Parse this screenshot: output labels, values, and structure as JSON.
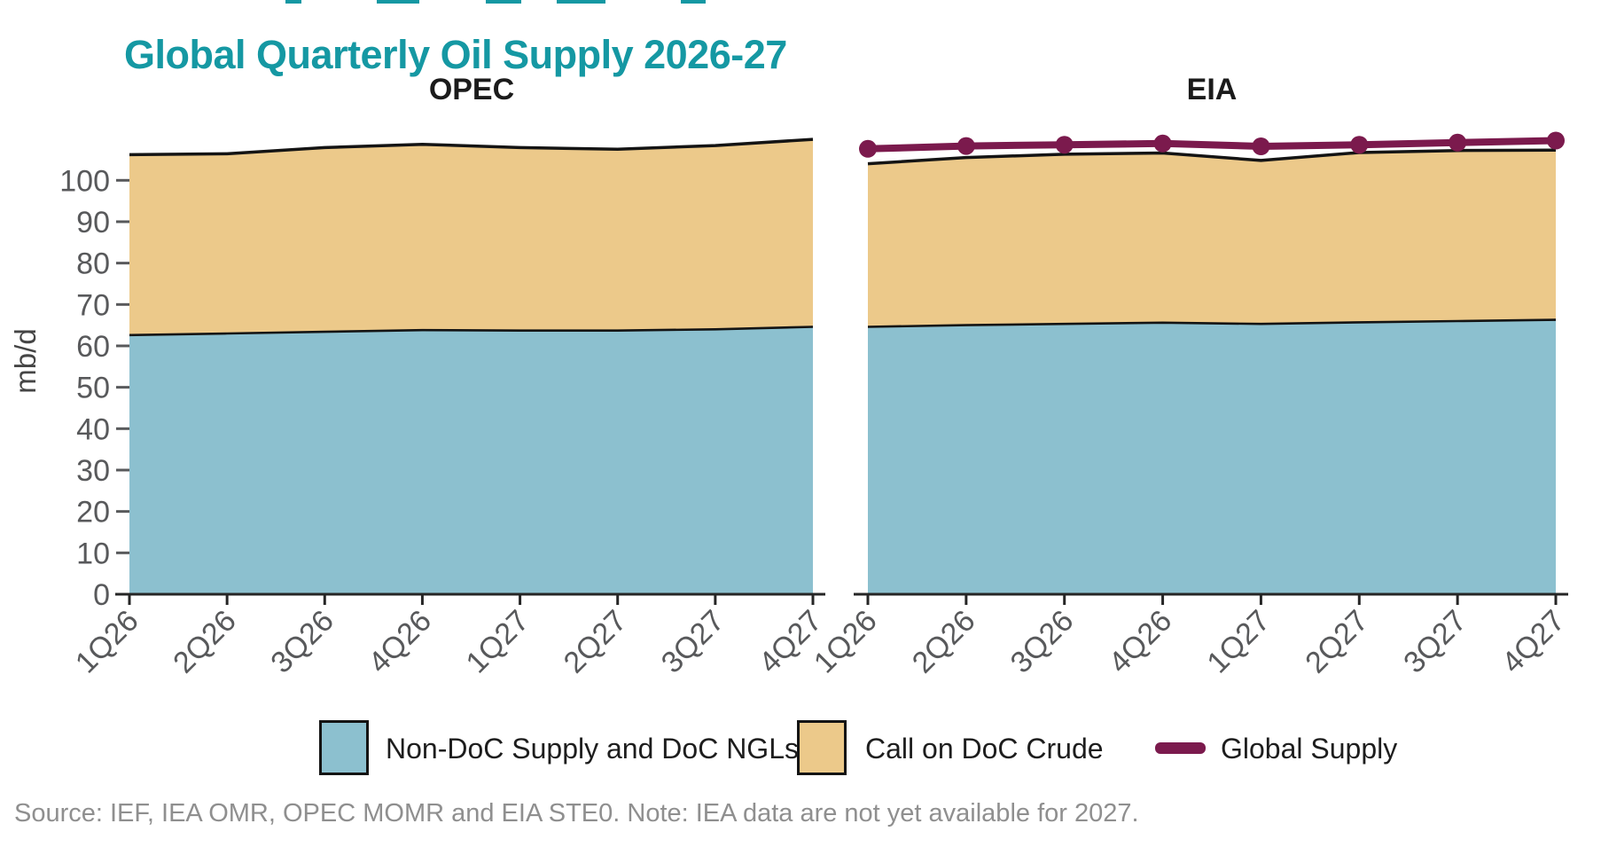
{
  "page": {
    "title": "Global Quarterly Oil Supply 2026-27",
    "source_note": "Source: IEF, IEA OMR, OPEC MOMR and EIA STE0. Note: IEA data are not yet available for 2027."
  },
  "colors": {
    "title_teal": "#1598A3",
    "area_blue": "#8CC0CF",
    "area_tan": "#ECC98A",
    "line_maroon": "#7B1A4D",
    "outline_black": "#141414",
    "axis_black": "#262626",
    "tick_gray": "#58595B",
    "panel_title_black": "#1B1B1B",
    "source_gray": "#8F8F8F"
  },
  "legend": {
    "items": [
      {
        "label": "Non-DoC Supply and DoC NGLs",
        "swatch": "area",
        "color": "#8CC0CF"
      },
      {
        "label": "Call on DoC Crude",
        "swatch": "area",
        "color": "#ECC98A"
      },
      {
        "label": "Global Supply",
        "swatch": "line",
        "color": "#7B1A4D"
      }
    ]
  },
  "chart_data": {
    "type": "area",
    "subtype": "two-panel stacked area, quarterly, shared y axis",
    "categories": [
      "1Q26",
      "2Q26",
      "3Q26",
      "4Q26",
      "1Q27",
      "2Q27",
      "3Q27",
      "4Q27"
    ],
    "y_axis": {
      "label": "mb/d",
      "ticks": [
        0,
        10,
        20,
        30,
        40,
        50,
        60,
        70,
        80,
        90,
        100
      ],
      "range": [
        0,
        112
      ],
      "grid": false
    },
    "legend_position": "bottom",
    "panels": [
      {
        "title": "OPEC",
        "series": [
          {
            "name": "Non-DoC Supply and DoC NGLs",
            "type": "area-stack",
            "color": "#8CC0CF",
            "values": [
              62.6,
              63.0,
              63.4,
              63.8,
              63.7,
              63.7,
              64.0,
              64.6
            ]
          },
          {
            "name": "Call on DoC Crude",
            "type": "area-stack",
            "color": "#ECC98A",
            "values": [
              43.6,
              43.4,
              44.5,
              44.9,
              44.2,
              43.8,
              44.4,
              45.3
            ]
          }
        ],
        "stack_totals": [
          106.2,
          106.4,
          107.9,
          108.7,
          107.9,
          107.5,
          108.4,
          109.9
        ]
      },
      {
        "title": "EIA",
        "series": [
          {
            "name": "Non-DoC Supply and DoC NGLs",
            "type": "area-stack",
            "color": "#8CC0CF",
            "values": [
              64.6,
              65.0,
              65.3,
              65.6,
              65.3,
              65.7,
              66.0,
              66.3
            ]
          },
          {
            "name": "Call on DoC Crude",
            "type": "area-stack",
            "color": "#ECC98A",
            "values": [
              39.4,
              40.5,
              41.0,
              41.0,
              39.5,
              41.0,
              41.2,
              41.0
            ]
          },
          {
            "name": "Global Supply",
            "type": "line",
            "color": "#7B1A4D",
            "values": [
              107.6,
              108.3,
              108.6,
              108.9,
              108.2,
              108.6,
              109.1,
              109.6
            ]
          }
        ],
        "stack_totals": [
          104.0,
          105.5,
          106.3,
          106.6,
          104.8,
          106.7,
          107.2,
          107.3
        ]
      }
    ]
  }
}
